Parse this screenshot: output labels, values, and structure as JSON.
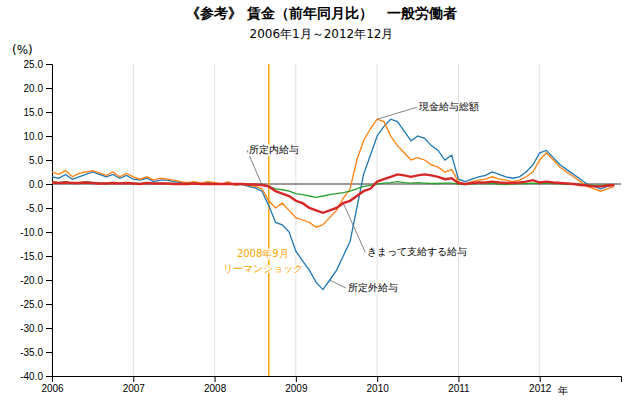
{
  "chart_data": {
    "type": "line",
    "title": "《参考》 賃金（前年同月比）　一般労働者",
    "subtitle": "2006年1月～2012年12月",
    "ylabel": "(%)",
    "xlabel": "年",
    "grid": "x",
    "xlim": [
      2006,
      2013.0
    ],
    "xticks": [
      2006,
      2007,
      2008,
      2009,
      2010,
      2011,
      2012
    ],
    "ylim": [
      -40.0,
      25.0
    ],
    "yticks": [
      {
        "value": -40.0,
        "label": "-40.0"
      },
      {
        "value": -35.0,
        "label": "-35.0"
      },
      {
        "value": -30.0,
        "label": "-30.0"
      },
      {
        "value": -25.0,
        "label": "-25.0"
      },
      {
        "value": -20.0,
        "label": "-20.0"
      },
      {
        "value": -15.0,
        "label": "-15.0"
      },
      {
        "value": -10.0,
        "label": "-10.0"
      },
      {
        "value": -5.0,
        "label": "-5.0"
      },
      {
        "value": 0.0,
        "label": "0.0"
      },
      {
        "value": 5.0,
        "label": "5.0"
      },
      {
        "value": 10.0,
        "label": "10.0"
      },
      {
        "value": 15.0,
        "label": "15.0"
      },
      {
        "value": 20.0,
        "label": "20.0"
      },
      {
        "value": 25.0,
        "label": "25.0"
      }
    ],
    "annotations": [
      {
        "x": 2008.667,
        "lines": [
          "2008年9月",
          "リーマンショック"
        ],
        "color": "#FFA500"
      }
    ],
    "x": [
      2006.0,
      2006.083,
      2006.167,
      2006.25,
      2006.333,
      2006.417,
      2006.5,
      2006.583,
      2006.667,
      2006.75,
      2006.833,
      2006.917,
      2007.0,
      2007.083,
      2007.167,
      2007.25,
      2007.333,
      2007.417,
      2007.5,
      2007.583,
      2007.667,
      2007.75,
      2007.833,
      2007.917,
      2008.0,
      2008.083,
      2008.167,
      2008.25,
      2008.333,
      2008.417,
      2008.5,
      2008.583,
      2008.667,
      2008.75,
      2008.833,
      2008.917,
      2009.0,
      2009.083,
      2009.167,
      2009.25,
      2009.333,
      2009.417,
      2009.5,
      2009.583,
      2009.667,
      2009.75,
      2009.833,
      2009.917,
      2010.0,
      2010.083,
      2010.167,
      2010.25,
      2010.333,
      2010.417,
      2010.5,
      2010.583,
      2010.667,
      2010.75,
      2010.833,
      2010.917,
      2011.0,
      2011.083,
      2011.167,
      2011.25,
      2011.333,
      2011.417,
      2011.5,
      2011.583,
      2011.667,
      2011.75,
      2011.833,
      2011.917,
      2012.0,
      2012.083,
      2012.167,
      2012.25,
      2012.333,
      2012.417,
      2012.5,
      2012.583,
      2012.667,
      2012.75,
      2012.833,
      2012.917
    ],
    "series": [
      {
        "name": "所定外給与",
        "values": [
          1.5,
          1.2,
          2.0,
          1.0,
          1.5,
          2.0,
          2.5,
          2.0,
          1.5,
          2.0,
          1.2,
          1.8,
          1.0,
          0.8,
          1.2,
          0.5,
          0.8,
          0.8,
          0.5,
          0.3,
          0.2,
          0.3,
          0.1,
          0.3,
          0.2,
          -0.1,
          0.3,
          -0.2,
          -0.1,
          -0.5,
          -0.8,
          -1.5,
          -4.5,
          -8.0,
          -8.5,
          -10.0,
          -14.0,
          -16.0,
          -18.0,
          -20.5,
          -22.0,
          -20.0,
          -18.0,
          -15.0,
          -12.0,
          -5.0,
          2.0,
          6.0,
          10.0,
          12.0,
          13.5,
          13.0,
          11.0,
          9.0,
          10.0,
          9.5,
          8.0,
          7.0,
          5.0,
          6.0,
          1.0,
          0.5,
          1.0,
          1.5,
          1.8,
          2.5,
          2.0,
          1.5,
          1.2,
          1.5,
          2.5,
          4.0,
          6.5,
          7.0,
          5.5,
          4.0,
          3.0,
          2.0,
          1.0,
          0.0,
          -0.5,
          -1.0,
          -0.5,
          -0.2
        ]
      },
      {
        "name": "現金給与総額",
        "values": [
          2.5,
          2.0,
          2.8,
          1.5,
          2.2,
          2.5,
          2.8,
          2.3,
          1.8,
          2.5,
          1.5,
          2.2,
          1.5,
          1.0,
          1.5,
          0.8,
          1.2,
          1.0,
          0.8,
          0.5,
          0.3,
          0.5,
          0.2,
          0.5,
          0.3,
          0.0,
          0.5,
          -0.2,
          0.0,
          -0.3,
          -0.5,
          -1.0,
          -3.5,
          -5.0,
          -4.0,
          -5.5,
          -7.0,
          -7.5,
          -8.0,
          -9.0,
          -8.5,
          -7.0,
          -5.5,
          -3.0,
          -1.0,
          5.0,
          9.0,
          11.5,
          13.5,
          13.0,
          10.0,
          8.0,
          6.5,
          5.0,
          5.5,
          5.0,
          4.0,
          3.5,
          2.5,
          3.0,
          0.5,
          0.0,
          0.5,
          0.8,
          1.0,
          1.5,
          1.0,
          0.8,
          0.5,
          0.8,
          1.5,
          2.5,
          5.0,
          6.5,
          5.0,
          3.5,
          2.5,
          1.5,
          0.5,
          -0.5,
          -1.0,
          -1.5,
          -1.0,
          -0.5
        ]
      },
      {
        "name": "所定内給与",
        "values": [
          0.5,
          0.3,
          0.5,
          0.2,
          0.3,
          0.5,
          0.3,
          0.2,
          0.1,
          0.3,
          0.2,
          0.3,
          0.2,
          0.1,
          0.3,
          0.1,
          0.2,
          0.1,
          0.1,
          0.0,
          0.1,
          0.1,
          0.0,
          0.1,
          0.0,
          0.0,
          0.1,
          0.0,
          0.0,
          -0.1,
          -0.1,
          -0.2,
          -0.5,
          -1.0,
          -1.2,
          -1.5,
          -2.0,
          -2.2,
          -2.5,
          -2.8,
          -2.5,
          -2.2,
          -2.0,
          -1.8,
          -1.5,
          -1.0,
          -0.5,
          -0.3,
          0.0,
          0.2,
          0.3,
          0.5,
          0.3,
          0.2,
          0.3,
          0.2,
          0.1,
          0.1,
          0.2,
          0.2,
          0.0,
          -0.1,
          0.0,
          0.1,
          0.1,
          0.1,
          0.0,
          -0.1,
          0.0,
          0.1,
          0.1,
          0.2,
          0.1,
          0.2,
          0.1,
          0.1,
          0.0,
          0.0,
          -0.1,
          -0.2,
          -0.3,
          -0.3,
          -0.2,
          -0.2
        ]
      },
      {
        "name": "きまって支給する給与",
        "values": [
          0.3,
          0.2,
          0.3,
          0.2,
          0.2,
          0.3,
          0.2,
          0.1,
          0.1,
          0.2,
          0.1,
          0.2,
          0.1,
          0.0,
          0.2,
          0.1,
          0.1,
          0.1,
          0.0,
          0.0,
          0.0,
          0.1,
          0.0,
          0.0,
          0.0,
          0.0,
          0.0,
          0.0,
          0.0,
          -0.1,
          -0.1,
          -0.2,
          -0.5,
          -1.5,
          -2.0,
          -2.5,
          -3.5,
          -4.0,
          -5.0,
          -5.5,
          -6.0,
          -5.5,
          -5.0,
          -4.0,
          -3.5,
          -2.5,
          -1.5,
          -1.0,
          0.5,
          1.0,
          1.5,
          2.0,
          1.8,
          1.5,
          1.8,
          2.0,
          1.8,
          1.5,
          1.0,
          1.2,
          0.2,
          0.0,
          0.2,
          0.3,
          0.3,
          0.5,
          0.3,
          0.2,
          0.2,
          0.3,
          0.5,
          0.8,
          0.3,
          0.5,
          0.3,
          0.2,
          0.1,
          0.0,
          -0.2,
          -0.3,
          -0.5,
          -0.5,
          -0.3,
          -0.2
        ]
      }
    ]
  }
}
